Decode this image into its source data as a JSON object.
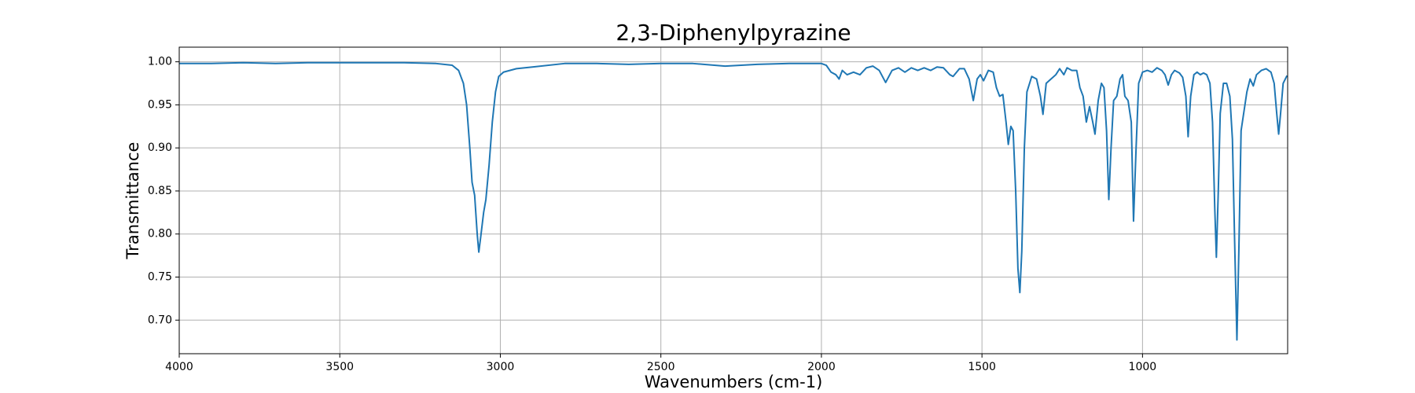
{
  "chart_data": {
    "type": "line",
    "title": "2,3-Diphenylpyrazine",
    "x_label": "Wavenumbers (cm-1)",
    "y_label": "Transmittance",
    "color": "#1f77b4",
    "grid": true,
    "xlim": [
      4000,
      548
    ],
    "ylim": [
      0.661,
      1.017
    ],
    "xticks": [
      4000,
      3500,
      3000,
      2500,
      2000,
      1500,
      1000
    ],
    "yticks": [
      {
        "value": 0.7,
        "label": "0.70"
      },
      0.75,
      {
        "value": 0.8,
        "label": "0.80"
      },
      0.85,
      {
        "value": 0.9,
        "label": "0.90"
      },
      0.95,
      {
        "value": 1.0,
        "label": "1.00"
      }
    ],
    "x": [
      4000,
      3900,
      3800,
      3700,
      3600,
      3500,
      3400,
      3300,
      3200,
      3150,
      3130,
      3115,
      3105,
      3095,
      3088,
      3080,
      3072,
      3067,
      3060,
      3052,
      3045,
      3035,
      3025,
      3015,
      3005,
      2990,
      2950,
      2900,
      2800,
      2700,
      2600,
      2500,
      2400,
      2300,
      2200,
      2100,
      2000,
      1985,
      1970,
      1955,
      1945,
      1935,
      1920,
      1900,
      1880,
      1860,
      1840,
      1820,
      1800,
      1780,
      1760,
      1740,
      1720,
      1700,
      1680,
      1660,
      1640,
      1620,
      1600,
      1590,
      1570,
      1555,
      1540,
      1527,
      1515,
      1505,
      1495,
      1480,
      1465,
      1455,
      1445,
      1435,
      1425,
      1418,
      1410,
      1403,
      1395,
      1388,
      1382,
      1376,
      1368,
      1360,
      1345,
      1330,
      1318,
      1310,
      1300,
      1285,
      1270,
      1258,
      1245,
      1235,
      1220,
      1205,
      1195,
      1185,
      1175,
      1165,
      1155,
      1148,
      1138,
      1128,
      1120,
      1112,
      1105,
      1098,
      1090,
      1080,
      1070,
      1062,
      1055,
      1045,
      1035,
      1028,
      1020,
      1012,
      1000,
      985,
      970,
      955,
      940,
      930,
      920,
      910,
      900,
      885,
      875,
      865,
      858,
      850,
      840,
      830,
      820,
      810,
      800,
      790,
      782,
      775,
      770,
      764,
      758,
      748,
      738,
      728,
      720,
      713,
      706,
      700,
      693,
      685,
      675,
      665,
      655,
      645,
      630,
      615,
      600,
      590,
      582,
      576,
      570,
      562,
      550
    ],
    "values": [
      0.998,
      0.998,
      0.999,
      0.998,
      0.999,
      0.999,
      0.999,
      0.999,
      0.998,
      0.996,
      0.99,
      0.975,
      0.95,
      0.9,
      0.86,
      0.845,
      0.8,
      0.779,
      0.8,
      0.825,
      0.84,
      0.88,
      0.93,
      0.965,
      0.983,
      0.988,
      0.992,
      0.994,
      0.998,
      0.998,
      0.997,
      0.998,
      0.998,
      0.995,
      0.997,
      0.998,
      0.998,
      0.996,
      0.988,
      0.985,
      0.98,
      0.99,
      0.985,
      0.988,
      0.985,
      0.993,
      0.995,
      0.99,
      0.976,
      0.99,
      0.993,
      0.988,
      0.993,
      0.99,
      0.993,
      0.99,
      0.994,
      0.993,
      0.985,
      0.983,
      0.992,
      0.992,
      0.98,
      0.955,
      0.98,
      0.985,
      0.978,
      0.99,
      0.988,
      0.97,
      0.96,
      0.962,
      0.93,
      0.904,
      0.925,
      0.92,
      0.85,
      0.76,
      0.732,
      0.78,
      0.9,
      0.965,
      0.983,
      0.98,
      0.96,
      0.939,
      0.975,
      0.98,
      0.985,
      0.992,
      0.985,
      0.993,
      0.99,
      0.99,
      0.97,
      0.96,
      0.93,
      0.948,
      0.93,
      0.916,
      0.955,
      0.975,
      0.97,
      0.92,
      0.84,
      0.9,
      0.955,
      0.96,
      0.98,
      0.985,
      0.96,
      0.955,
      0.93,
      0.815,
      0.9,
      0.975,
      0.988,
      0.99,
      0.988,
      0.993,
      0.99,
      0.985,
      0.973,
      0.985,
      0.99,
      0.987,
      0.982,
      0.96,
      0.913,
      0.96,
      0.985,
      0.988,
      0.985,
      0.987,
      0.985,
      0.975,
      0.93,
      0.83,
      0.773,
      0.85,
      0.94,
      0.975,
      0.975,
      0.96,
      0.91,
      0.79,
      0.677,
      0.78,
      0.92,
      0.94,
      0.965,
      0.98,
      0.972,
      0.985,
      0.99,
      0.992,
      0.988,
      0.975,
      0.94,
      0.916,
      0.94,
      0.975,
      0.984
    ]
  }
}
